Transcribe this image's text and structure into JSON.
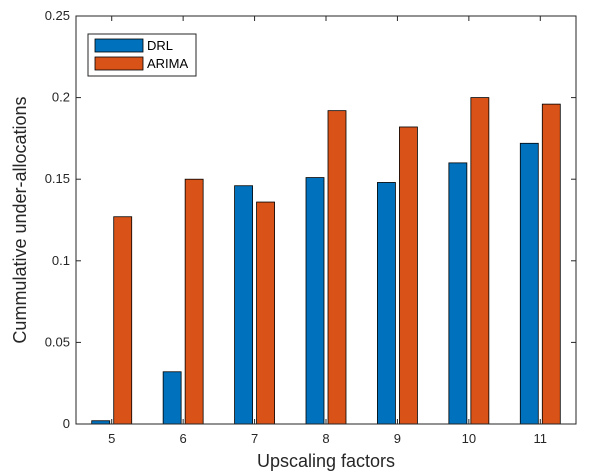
{
  "chart_data": {
    "type": "bar",
    "categories": [
      "5",
      "6",
      "7",
      "8",
      "9",
      "10",
      "11"
    ],
    "series": [
      {
        "name": "DRL",
        "color": "#0072BD",
        "values": [
          0.002,
          0.032,
          0.146,
          0.151,
          0.148,
          0.16,
          0.172
        ]
      },
      {
        "name": "ARIMA",
        "color": "#D95319",
        "values": [
          0.127,
          0.15,
          0.136,
          0.192,
          0.182,
          0.2,
          0.196
        ]
      }
    ],
    "title": "",
    "xlabel": "Upscaling factors",
    "ylabel": "Cummulative under-allocations",
    "ylim": [
      0,
      0.25
    ],
    "yticks": [
      0,
      0.05,
      0.1,
      0.15,
      0.2,
      0.25
    ],
    "ytick_labels": [
      "0",
      "0.05",
      "0.1",
      "0.15",
      "0.2",
      "0.25"
    ],
    "grid": false,
    "legend_position": "top-left"
  }
}
